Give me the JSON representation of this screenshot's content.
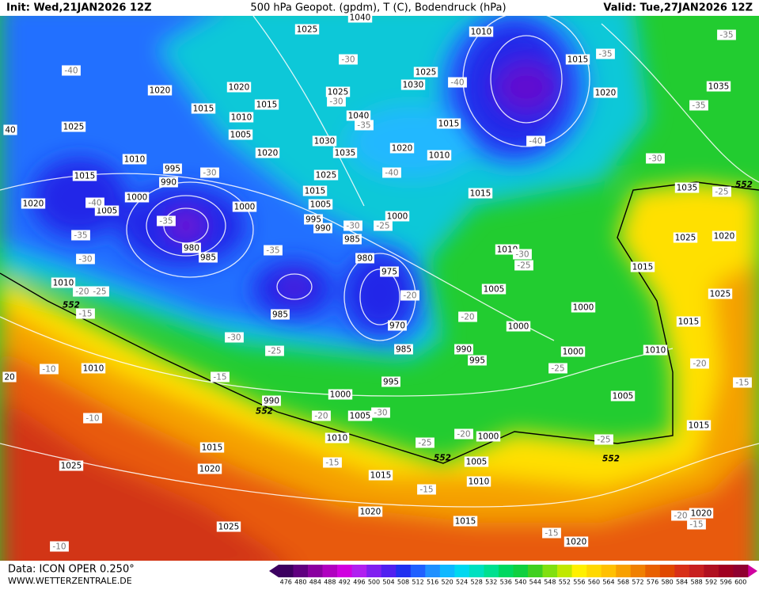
{
  "header": {
    "init": "Init: Wed,21JAN2026 12Z",
    "title": "500 hPa Geopot. (gpdm), T (C), Bodendruck (hPa)",
    "valid": "Valid: Tue,27JAN2026 12Z"
  },
  "footer": {
    "source": "Data: ICON OPER 0.250°",
    "site": "WWW.WETTERZENTRALE.DE"
  },
  "colorbar": {
    "values": [
      476,
      480,
      484,
      488,
      492,
      496,
      500,
      504,
      508,
      512,
      516,
      520,
      524,
      528,
      532,
      536,
      540,
      544,
      548,
      552,
      556,
      560,
      564,
      568,
      572,
      576,
      580,
      584,
      588,
      592,
      596,
      600
    ],
    "colors": [
      "#3c0060",
      "#600080",
      "#8a00a0",
      "#b000c0",
      "#d000e0",
      "#b020f0",
      "#8020f0",
      "#5020f0",
      "#2030f0",
      "#2060ff",
      "#2090ff",
      "#10b8ff",
      "#00d8f0",
      "#00e0c0",
      "#00e090",
      "#00d860",
      "#10d040",
      "#40d020",
      "#80e010",
      "#c0e800",
      "#fff000",
      "#ffd800",
      "#ffc000",
      "#f8a000",
      "#f08000",
      "#e86000",
      "#e04800",
      "#d83018",
      "#c82020",
      "#b01020",
      "#a00020",
      "#900030"
    ]
  },
  "map": {
    "pressure_labels": [
      "1040",
      "1025",
      "1020",
      "1020",
      "1015",
      "1015",
      "1010",
      "1005",
      "1020",
      "1025",
      "1040",
      "1030",
      "1035",
      "1025",
      "1015",
      "1005",
      "1000",
      "995",
      "990",
      "985",
      "980",
      "975",
      "970",
      "985",
      "990",
      "995",
      "995",
      "1000",
      "1005",
      "1010",
      "1015",
      "1020",
      "1025",
      "1025",
      "1010",
      "1010",
      "1020",
      "1015",
      "1005",
      "1000",
      "995",
      "990",
      "980",
      "985",
      "985",
      "1010",
      "1025",
      "990",
      "1030",
      "1025",
      "1015",
      "1020",
      "1010",
      "1010",
      "1015",
      "1020",
      "1015",
      "1000",
      "1010",
      "1005",
      "1000",
      "1000",
      "1000",
      "1010",
      "1005",
      "1000",
      "1005",
      "1010",
      "1015",
      "1015",
      "1020",
      "1020",
      "1015",
      "1020",
      "1025",
      "1025",
      "1020",
      "1015",
      "1015",
      "1035",
      "1035"
    ],
    "temperature_labels": [
      "-40",
      "-40",
      "-35",
      "-30",
      "-20",
      "-25",
      "-15",
      "-10",
      "-10",
      "-10",
      "-35",
      "-30",
      "-30",
      "-25",
      "-15",
      "-35",
      "-30",
      "-30",
      "-35",
      "-40",
      "-40",
      "-35",
      "-40",
      "-35",
      "-35",
      "-30",
      "-25",
      "-30",
      "-25",
      "-20",
      "-20",
      "-25",
      "-20",
      "-15",
      "-20",
      "-30",
      "-25",
      "-20",
      "-15",
      "-15",
      "-25",
      "-15",
      "-20",
      "-15",
      "-30",
      "-25"
    ],
    "height_labels": [
      "552",
      "552",
      "552",
      "552",
      "552"
    ],
    "edge_labels": [
      "40",
      "20"
    ]
  }
}
